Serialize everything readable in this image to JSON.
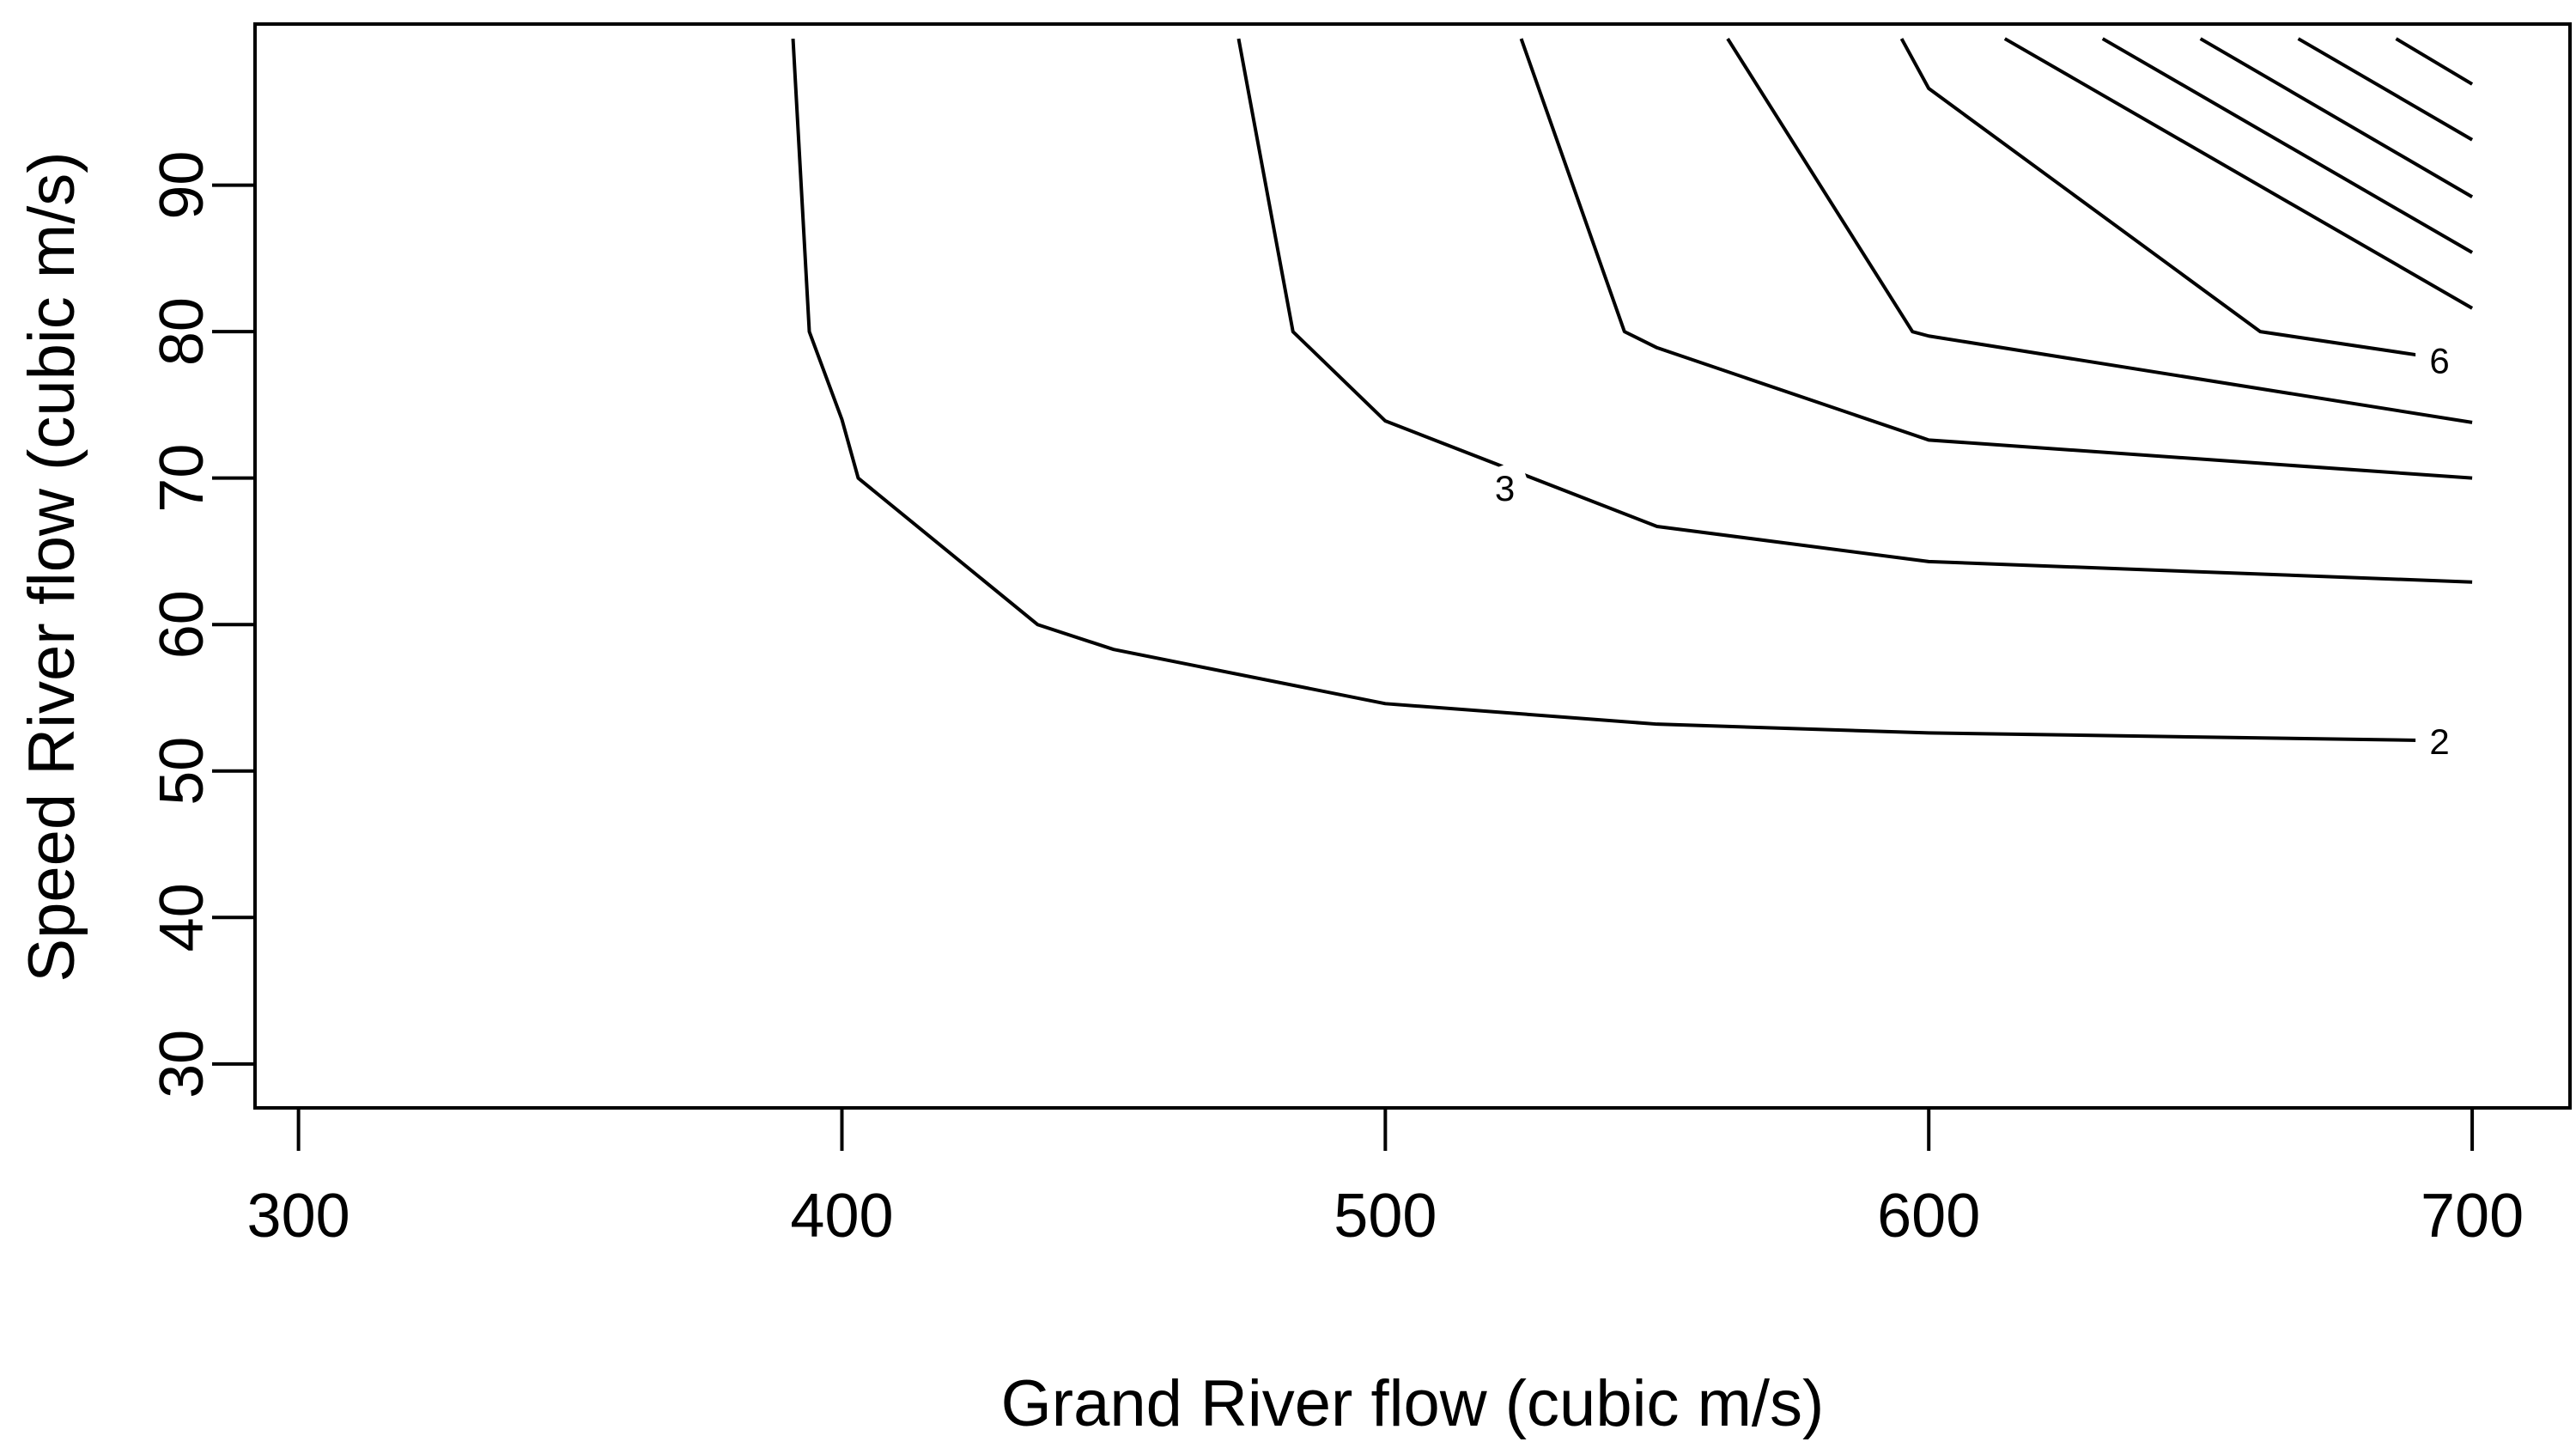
{
  "chart_data": {
    "type": "contour",
    "title": "",
    "xlabel": "Grand River flow (cubic m/s)",
    "ylabel": "Speed River flow (cubic m/s)",
    "xlim": [
      292,
      718
    ],
    "ylim": [
      27,
      101
    ],
    "xticks": [
      300,
      400,
      500,
      600,
      700
    ],
    "yticks": [
      30,
      40,
      50,
      60,
      70,
      80,
      90
    ],
    "grid": false,
    "contours": [
      {
        "label": "2",
        "label_at": [
          694,
          52.0
        ],
        "points": [
          [
            391,
            100
          ],
          [
            394,
            80
          ],
          [
            400,
            74
          ],
          [
            403,
            70
          ],
          [
            436,
            60
          ],
          [
            450,
            58.3
          ],
          [
            500,
            54.6
          ],
          [
            550,
            53.2
          ],
          [
            600,
            52.6
          ],
          [
            690,
            52.1
          ]
        ]
      },
      {
        "label": "3",
        "label_at": [
          522,
          69.3
        ],
        "label_angle": -20,
        "points": [
          [
            473,
            100
          ],
          [
            483,
            80
          ],
          [
            500,
            73.9
          ],
          [
            550,
            66.7
          ],
          [
            600,
            64.3
          ],
          [
            700,
            62.9
          ]
        ]
      },
      {
        "label": "",
        "points": [
          [
            525,
            100
          ],
          [
            544,
            80
          ],
          [
            550,
            78.9
          ],
          [
            600,
            72.6
          ],
          [
            700,
            70.0
          ]
        ]
      },
      {
        "label": "",
        "points": [
          [
            563,
            100
          ],
          [
            597,
            80
          ],
          [
            600,
            79.7
          ],
          [
            700,
            73.8
          ]
        ]
      },
      {
        "label": "6",
        "label_at": [
          694,
          78.0
        ],
        "points": [
          [
            595,
            100
          ],
          [
            600,
            96.6
          ],
          [
            661,
            80
          ],
          [
            690,
            78.4
          ]
        ]
      },
      {
        "label": "",
        "points": [
          [
            614,
            100
          ],
          [
            700,
            81.6
          ]
        ]
      },
      {
        "label": "",
        "points": [
          [
            632,
            100
          ],
          [
            700,
            85.4
          ]
        ]
      },
      {
        "label": "",
        "points": [
          [
            650,
            100
          ],
          [
            700,
            89.2
          ]
        ]
      },
      {
        "label": "",
        "points": [
          [
            668,
            100
          ],
          [
            700,
            93.1
          ]
        ]
      },
      {
        "label": "",
        "points": [
          [
            686,
            100
          ],
          [
            700,
            96.9
          ]
        ]
      }
    ]
  }
}
